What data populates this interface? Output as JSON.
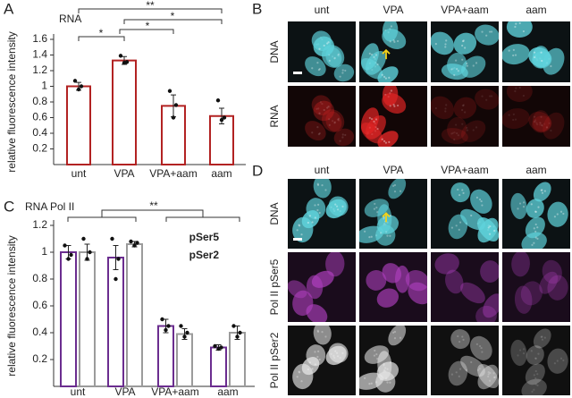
{
  "chart_data": [
    {
      "type": "bar",
      "title": "RNA",
      "ylabel": "relative fluorescence intensity",
      "categories": [
        "unt",
        "VPA",
        "VPA+aam",
        "aam"
      ],
      "values": [
        1.0,
        1.33,
        0.75,
        0.62
      ],
      "errors": [
        0.05,
        0.05,
        0.14,
        0.1
      ],
      "points": [
        [
          1.07,
          1.0,
          0.96
        ],
        [
          1.39,
          1.31,
          1.3
        ],
        [
          0.94,
          0.76,
          0.6
        ],
        [
          0.82,
          0.6,
          0.57
        ]
      ],
      "color": "#b22222",
      "ylim": [
        0,
        1.6
      ],
      "yticks": [
        0.2,
        0.4,
        0.6,
        0.8,
        1,
        1.2,
        1.4,
        1.6
      ],
      "annotations": [
        "*",
        "**",
        "*",
        "*"
      ]
    },
    {
      "type": "grouped_bar",
      "title": "RNA Pol II",
      "ylabel": "relative fluorescence intensity",
      "categories": [
        "unt",
        "VPA",
        "VPA+aam",
        "aam"
      ],
      "series": [
        {
          "name": "pSer5",
          "color": "#6b2d8f",
          "values": [
            1.0,
            0.96,
            0.45,
            0.29
          ],
          "errors": [
            0.05,
            0.09,
            0.05,
            0.02
          ],
          "points": [
            [
              1.05,
              0.98,
              0.95
            ],
            [
              1.1,
              0.95,
              0.8
            ],
            [
              0.5,
              0.45,
              0.42
            ],
            [
              0.3,
              0.29,
              0.28
            ]
          ]
        },
        {
          "name": "pSer2",
          "color": "#9b9b9b",
          "values": [
            1.0,
            1.06,
            0.39,
            0.4
          ],
          "errors": [
            0.06,
            0.02,
            0.04,
            0.05
          ],
          "points": [
            [
              1.1,
              1.0,
              0.95
            ],
            [
              1.08,
              1.07,
              1.05
            ],
            [
              0.45,
              0.4,
              0.37
            ],
            [
              0.45,
              0.4,
              0.37
            ]
          ]
        }
      ],
      "ylim": [
        0,
        1.2
      ],
      "yticks": [
        0.2,
        0.4,
        0.6,
        0.8,
        1,
        1.2
      ],
      "annotations": [
        "**"
      ]
    }
  ],
  "panel_letters": [
    "A",
    "B",
    "C",
    "D"
  ],
  "image_panels": [
    {
      "columns": [
        "unt",
        "VPA",
        "VPA+aam",
        "aam"
      ],
      "rows": [
        "DNA",
        "RNA"
      ]
    },
    {
      "columns": [
        "unt",
        "VPA",
        "VPA+aam",
        "aam"
      ],
      "rows": [
        "DNA",
        "Pol II pSer5",
        "Pol II pSer2"
      ]
    }
  ]
}
